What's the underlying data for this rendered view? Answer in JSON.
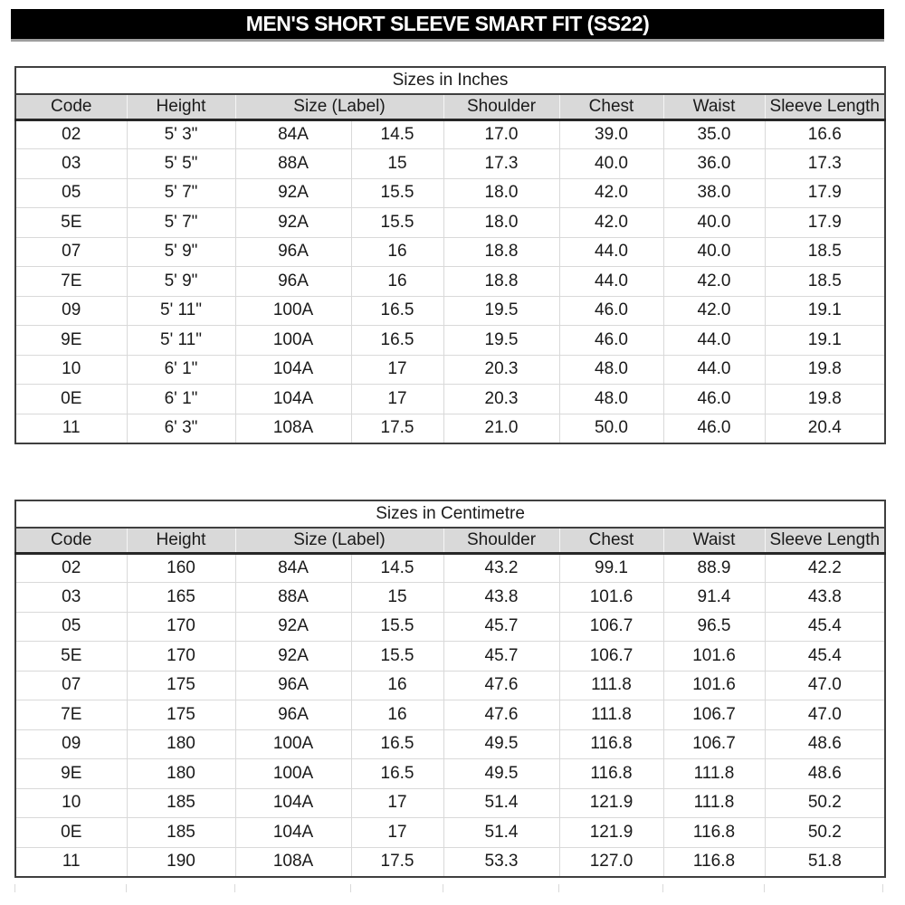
{
  "banner": {
    "title": "MEN'S SHORT SLEEVE SMART FIT (SS22)"
  },
  "colors": {
    "banner_bg": "#000000",
    "banner_text": "#ffffff",
    "header_row_bg": "#d9d9d9",
    "dark_border": "#3f3f3f",
    "grid_line": "#d9d9d9"
  },
  "tables": [
    {
      "title": "Sizes in Inches",
      "headers": [
        {
          "label": "Code",
          "colspan": 1
        },
        {
          "label": "Height",
          "colspan": 1
        },
        {
          "label": "Size (Label)",
          "colspan": 2
        },
        {
          "label": "Shoulder",
          "colspan": 1
        },
        {
          "label": "Chest",
          "colspan": 1
        },
        {
          "label": "Waist",
          "colspan": 1
        },
        {
          "label": "Sleeve Length",
          "colspan": 1
        }
      ],
      "rows": [
        [
          "02",
          "5' 3\"",
          "84A",
          "14.5",
          "17.0",
          "39.0",
          "35.0",
          "16.6"
        ],
        [
          "03",
          "5' 5\"",
          "88A",
          "15",
          "17.3",
          "40.0",
          "36.0",
          "17.3"
        ],
        [
          "05",
          "5' 7\"",
          "92A",
          "15.5",
          "18.0",
          "42.0",
          "38.0",
          "17.9"
        ],
        [
          "5E",
          "5' 7\"",
          "92A",
          "15.5",
          "18.0",
          "42.0",
          "40.0",
          "17.9"
        ],
        [
          "07",
          "5' 9\"",
          "96A",
          "16",
          "18.8",
          "44.0",
          "40.0",
          "18.5"
        ],
        [
          "7E",
          "5' 9\"",
          "96A",
          "16",
          "18.8",
          "44.0",
          "42.0",
          "18.5"
        ],
        [
          "09",
          "5' 11\"",
          "100A",
          "16.5",
          "19.5",
          "46.0",
          "42.0",
          "19.1"
        ],
        [
          "9E",
          "5' 11\"",
          "100A",
          "16.5",
          "19.5",
          "46.0",
          "44.0",
          "19.1"
        ],
        [
          "10",
          "6' 1\"",
          "104A",
          "17",
          "20.3",
          "48.0",
          "44.0",
          "19.8"
        ],
        [
          "0E",
          "6' 1\"",
          "104A",
          "17",
          "20.3",
          "48.0",
          "46.0",
          "19.8"
        ],
        [
          "11",
          "6' 3\"",
          "108A",
          "17.5",
          "21.0",
          "50.0",
          "46.0",
          "20.4"
        ]
      ]
    },
    {
      "title": "Sizes in Centimetre",
      "headers": [
        {
          "label": "Code",
          "colspan": 1
        },
        {
          "label": "Height",
          "colspan": 1
        },
        {
          "label": "Size (Label)",
          "colspan": 2
        },
        {
          "label": "Shoulder",
          "colspan": 1
        },
        {
          "label": "Chest",
          "colspan": 1
        },
        {
          "label": "Waist",
          "colspan": 1
        },
        {
          "label": "Sleeve Length",
          "colspan": 1
        }
      ],
      "rows": [
        [
          "02",
          "160",
          "84A",
          "14.5",
          "43.2",
          "99.1",
          "88.9",
          "42.2"
        ],
        [
          "03",
          "165",
          "88A",
          "15",
          "43.8",
          "101.6",
          "91.4",
          "43.8"
        ],
        [
          "05",
          "170",
          "92A",
          "15.5",
          "45.7",
          "106.7",
          "96.5",
          "45.4"
        ],
        [
          "5E",
          "170",
          "92A",
          "15.5",
          "45.7",
          "106.7",
          "101.6",
          "45.4"
        ],
        [
          "07",
          "175",
          "96A",
          "16",
          "47.6",
          "111.8",
          "101.6",
          "47.0"
        ],
        [
          "7E",
          "175",
          "96A",
          "16",
          "47.6",
          "111.8",
          "106.7",
          "47.0"
        ],
        [
          "09",
          "180",
          "100A",
          "16.5",
          "49.5",
          "116.8",
          "106.7",
          "48.6"
        ],
        [
          "9E",
          "180",
          "100A",
          "16.5",
          "49.5",
          "116.8",
          "111.8",
          "48.6"
        ],
        [
          "10",
          "185",
          "104A",
          "17",
          "51.4",
          "121.9",
          "111.8",
          "50.2"
        ],
        [
          "0E",
          "185",
          "104A",
          "17",
          "51.4",
          "121.9",
          "116.8",
          "50.2"
        ],
        [
          "11",
          "190",
          "108A",
          "17.5",
          "53.3",
          "127.0",
          "116.8",
          "51.8"
        ]
      ]
    }
  ]
}
